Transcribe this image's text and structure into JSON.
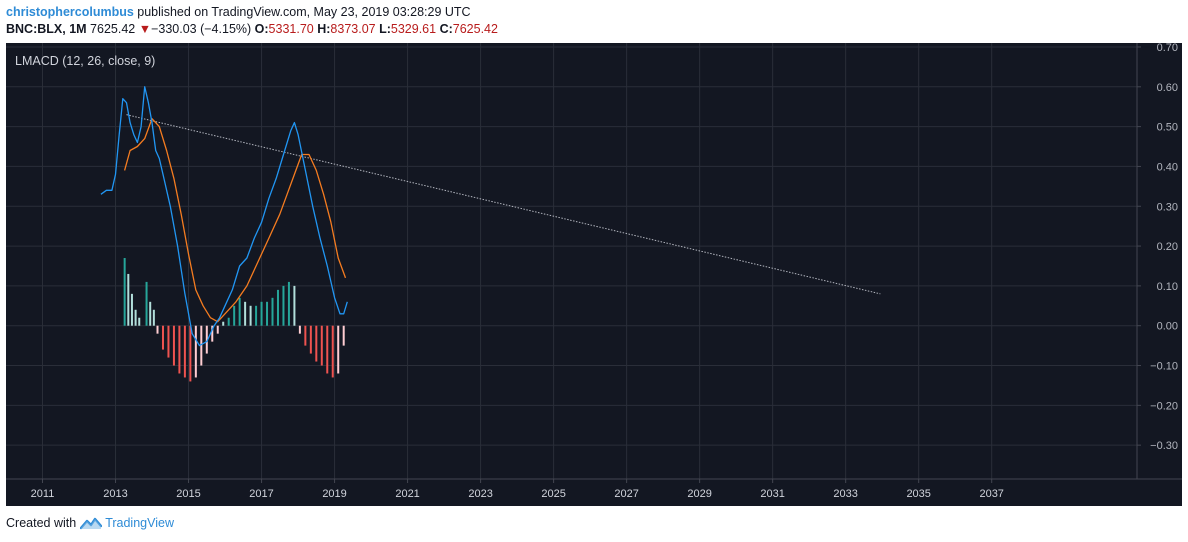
{
  "header": {
    "username": "christophercolumbus",
    "published_text": "published on TradingView.com, May 23, 2019 03:28:29 UTC",
    "symbol": "BNC:BLX, 1M",
    "last_price": "7625.42",
    "change_arrow": "▼",
    "change": "−330.03 (−4.15%)",
    "open_label": "O:",
    "open": "5331.70",
    "high_label": "H:",
    "high": "8373.07",
    "low_label": "L:",
    "low": "5329.61",
    "close_label": "C:",
    "close": "7625.42"
  },
  "footer": {
    "created_with": "Created with",
    "brand": "TradingView"
  },
  "colors": {
    "background": "#131722",
    "grid": "#2a2e39",
    "macd_line": "#2196f3",
    "signal_line": "#f57c20",
    "hist_pos_strong": "#26a69a",
    "hist_pos_weak": "#b2dfdb",
    "hist_neg_strong": "#ef5350",
    "hist_neg_weak": "#ffcdd2",
    "trendline": "#b2b5be"
  },
  "chart_data": {
    "type": "line",
    "title": "LMACD (12, 26, close, 9)",
    "xlim": [
      2010.0,
      2040.98
    ],
    "ylim": [
      -0.385,
      0.71
    ],
    "x_ticks": [
      "2011",
      "2013",
      "2015",
      "2017",
      "2019",
      "2021",
      "2023",
      "2025",
      "2027",
      "2029",
      "2031",
      "2033",
      "2035",
      "2037"
    ],
    "y_ticks": [
      "0.70",
      "0.60",
      "0.50",
      "0.40",
      "0.30",
      "0.20",
      "0.10",
      "0.00",
      "−0.10",
      "−0.20",
      "−0.30"
    ],
    "grid": true,
    "series": [
      {
        "name": "MACD",
        "x": [
          2012.6,
          2012.75,
          2012.9,
          2013.0,
          2013.1,
          2013.2,
          2013.3,
          2013.4,
          2013.5,
          2013.6,
          2013.7,
          2013.8,
          2013.9,
          2014.0,
          2014.1,
          2014.2,
          2014.3,
          2014.5,
          2014.7,
          2014.9,
          2015.1,
          2015.3,
          2015.5,
          2015.7,
          2015.85,
          2016.0,
          2016.2,
          2016.4,
          2016.6,
          2016.8,
          2017.0,
          2017.2,
          2017.4,
          2017.6,
          2017.8,
          2017.9,
          2018.0,
          2018.2,
          2018.4,
          2018.6,
          2018.8,
          2019.0,
          2019.15,
          2019.25,
          2019.35
        ],
        "values": [
          0.33,
          0.34,
          0.34,
          0.38,
          0.48,
          0.57,
          0.56,
          0.51,
          0.48,
          0.46,
          0.5,
          0.6,
          0.56,
          0.51,
          0.44,
          0.42,
          0.38,
          0.3,
          0.2,
          0.08,
          -0.02,
          -0.05,
          -0.04,
          0.0,
          0.02,
          0.05,
          0.09,
          0.15,
          0.17,
          0.22,
          0.26,
          0.32,
          0.37,
          0.43,
          0.49,
          0.51,
          0.48,
          0.39,
          0.3,
          0.22,
          0.15,
          0.07,
          0.03,
          0.03,
          0.06
        ]
      },
      {
        "name": "Signal",
        "x": [
          2013.25,
          2013.4,
          2013.6,
          2013.8,
          2014.0,
          2014.2,
          2014.4,
          2014.6,
          2014.8,
          2015.0,
          2015.2,
          2015.4,
          2015.6,
          2015.8,
          2016.0,
          2016.3,
          2016.6,
          2016.9,
          2017.2,
          2017.5,
          2017.7,
          2017.9,
          2018.1,
          2018.3,
          2018.5,
          2018.7,
          2018.9,
          2019.1,
          2019.3
        ],
        "values": [
          0.39,
          0.44,
          0.45,
          0.47,
          0.52,
          0.5,
          0.44,
          0.37,
          0.28,
          0.18,
          0.09,
          0.05,
          0.02,
          0.01,
          0.03,
          0.06,
          0.1,
          0.16,
          0.22,
          0.28,
          0.33,
          0.38,
          0.43,
          0.43,
          0.39,
          0.33,
          0.26,
          0.17,
          0.12
        ]
      },
      {
        "name": "Histogram",
        "type": "bar",
        "x": [
          2013.25,
          2013.35,
          2013.45,
          2013.55,
          2013.65,
          2013.85,
          2013.95,
          2014.05,
          2014.15,
          2014.3,
          2014.45,
          2014.6,
          2014.75,
          2014.9,
          2015.05,
          2015.2,
          2015.35,
          2015.5,
          2015.65,
          2015.8,
          2015.95,
          2016.1,
          2016.25,
          2016.4,
          2016.55,
          2016.7,
          2016.85,
          2017.0,
          2017.15,
          2017.3,
          2017.45,
          2017.6,
          2017.75,
          2017.9,
          2018.05,
          2018.2,
          2018.35,
          2018.5,
          2018.65,
          2018.8,
          2018.95,
          2019.1,
          2019.25
        ],
        "values": [
          0.17,
          0.13,
          0.08,
          0.04,
          0.02,
          0.11,
          0.06,
          0.04,
          -0.02,
          -0.06,
          -0.08,
          -0.1,
          -0.12,
          -0.13,
          -0.14,
          -0.13,
          -0.1,
          -0.07,
          -0.04,
          -0.02,
          0.01,
          0.02,
          0.05,
          0.07,
          0.06,
          0.05,
          0.05,
          0.06,
          0.06,
          0.07,
          0.09,
          0.1,
          0.11,
          0.1,
          -0.02,
          -0.05,
          -0.07,
          -0.09,
          -0.1,
          -0.12,
          -0.13,
          -0.12,
          -0.05
        ]
      }
    ],
    "trendline": {
      "x": [
        2013.3,
        2033.95
      ],
      "y": [
        0.53,
        0.08
      ]
    }
  }
}
